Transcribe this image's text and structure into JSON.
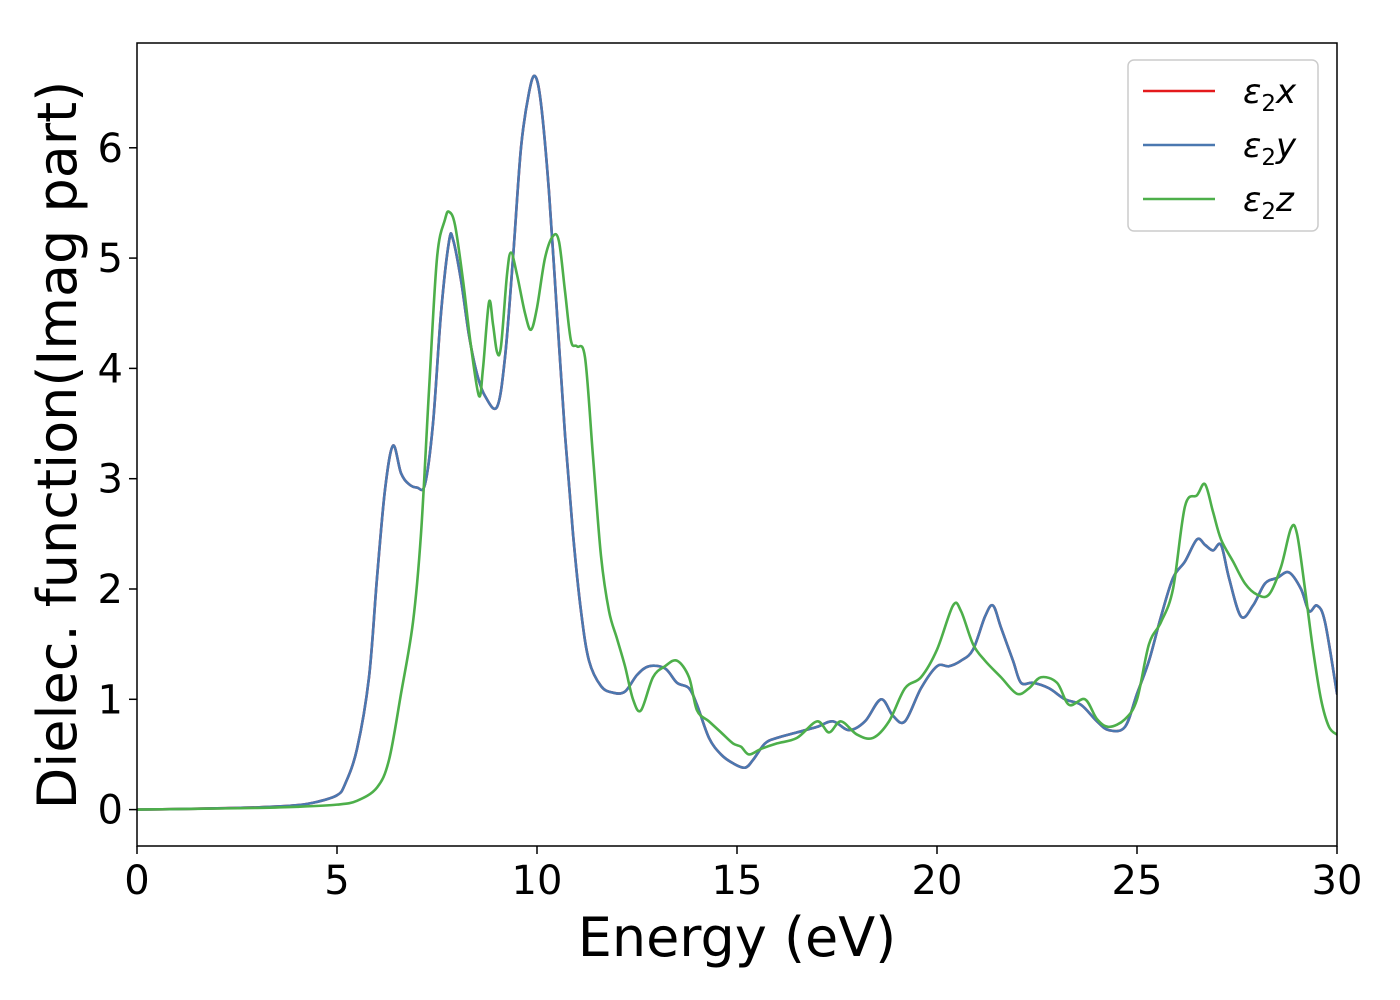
{
  "chart_data": {
    "type": "line",
    "title": "",
    "xlabel": "Energy (eV)",
    "ylabel": "Dielec. function(Imag part)",
    "xlim": [
      0,
      30
    ],
    "ylim": [
      -0.33,
      6.95
    ],
    "xticks": [
      0,
      5,
      10,
      15,
      20,
      25,
      30
    ],
    "yticks": [
      0,
      1,
      2,
      3,
      4,
      5,
      6
    ],
    "grid": false,
    "legend_position": "top-right",
    "series": [
      {
        "name": "ε₂x",
        "legend_base": "ε",
        "legend_sub": "2",
        "legend_var": "x",
        "color": "#e41a1c",
        "x": [
          0,
          1,
          2,
          3,
          4,
          4.5,
          5,
          5.2,
          5.5,
          5.8,
          6.0,
          6.2,
          6.4,
          6.6,
          6.8,
          7.0,
          7.2,
          7.4,
          7.6,
          7.8,
          7.9,
          8.1,
          8.3,
          8.5,
          8.7,
          9.0,
          9.2,
          9.4,
          9.6,
          9.8,
          9.95,
          10.1,
          10.3,
          10.5,
          10.7,
          10.9,
          11.1,
          11.3,
          11.6,
          11.9,
          12.2,
          12.5,
          12.8,
          13.2,
          13.5,
          13.8,
          14.0,
          14.3,
          14.6,
          14.9,
          15.2,
          15.4,
          15.7,
          16.0,
          16.5,
          17.0,
          17.4,
          17.8,
          18.2,
          18.6,
          18.9,
          19.2,
          19.6,
          20.0,
          20.3,
          20.6,
          20.9,
          21.2,
          21.4,
          21.6,
          21.9,
          22.1,
          22.4,
          22.8,
          23.2,
          23.6,
          24.0,
          24.3,
          24.7,
          25.0,
          25.3,
          25.6,
          25.9,
          26.2,
          26.5,
          26.7,
          26.9,
          27.1,
          27.3,
          27.6,
          27.9,
          28.2,
          28.5,
          28.8,
          29.1,
          29.3,
          29.5,
          29.7,
          30.0
        ],
        "values": [
          0.0,
          0.005,
          0.012,
          0.02,
          0.04,
          0.07,
          0.13,
          0.23,
          0.55,
          1.2,
          2.1,
          2.9,
          3.3,
          3.05,
          2.95,
          2.92,
          2.95,
          3.5,
          4.5,
          5.15,
          5.17,
          4.8,
          4.3,
          3.95,
          3.75,
          3.65,
          4.1,
          5.0,
          6.0,
          6.5,
          6.65,
          6.4,
          5.6,
          4.5,
          3.4,
          2.5,
          1.8,
          1.35,
          1.12,
          1.06,
          1.07,
          1.22,
          1.3,
          1.28,
          1.15,
          1.1,
          0.95,
          0.65,
          0.5,
          0.42,
          0.38,
          0.45,
          0.6,
          0.65,
          0.7,
          0.75,
          0.8,
          0.72,
          0.8,
          1.0,
          0.85,
          0.8,
          1.1,
          1.3,
          1.3,
          1.35,
          1.45,
          1.75,
          1.85,
          1.65,
          1.35,
          1.15,
          1.15,
          1.1,
          1.0,
          0.95,
          0.8,
          0.72,
          0.75,
          1.05,
          1.35,
          1.75,
          2.1,
          2.25,
          2.45,
          2.4,
          2.35,
          2.4,
          2.1,
          1.75,
          1.85,
          2.05,
          2.1,
          2.15,
          2.0,
          1.8,
          1.85,
          1.7,
          1.05
        ]
      },
      {
        "name": "ε₂y",
        "legend_base": "ε",
        "legend_sub": "2",
        "legend_var": "y",
        "color": "#4a78b0",
        "x": [
          0,
          1,
          2,
          3,
          4,
          4.5,
          5,
          5.2,
          5.5,
          5.8,
          6.0,
          6.2,
          6.4,
          6.6,
          6.8,
          7.0,
          7.2,
          7.4,
          7.6,
          7.8,
          7.9,
          8.1,
          8.3,
          8.5,
          8.7,
          9.0,
          9.2,
          9.4,
          9.6,
          9.8,
          9.95,
          10.1,
          10.3,
          10.5,
          10.7,
          10.9,
          11.1,
          11.3,
          11.6,
          11.9,
          12.2,
          12.5,
          12.8,
          13.2,
          13.5,
          13.8,
          14.0,
          14.3,
          14.6,
          14.9,
          15.2,
          15.4,
          15.7,
          16.0,
          16.5,
          17.0,
          17.4,
          17.8,
          18.2,
          18.6,
          18.9,
          19.2,
          19.6,
          20.0,
          20.3,
          20.6,
          20.9,
          21.2,
          21.4,
          21.6,
          21.9,
          22.1,
          22.4,
          22.8,
          23.2,
          23.6,
          24.0,
          24.3,
          24.7,
          25.0,
          25.3,
          25.6,
          25.9,
          26.2,
          26.5,
          26.7,
          26.9,
          27.1,
          27.3,
          27.6,
          27.9,
          28.2,
          28.5,
          28.8,
          29.1,
          29.3,
          29.5,
          29.7,
          30.0
        ],
        "values": [
          0.0,
          0.005,
          0.012,
          0.02,
          0.04,
          0.07,
          0.13,
          0.23,
          0.55,
          1.2,
          2.1,
          2.9,
          3.3,
          3.05,
          2.95,
          2.92,
          2.95,
          3.5,
          4.5,
          5.15,
          5.17,
          4.8,
          4.3,
          3.95,
          3.75,
          3.65,
          4.1,
          5.0,
          6.0,
          6.5,
          6.65,
          6.4,
          5.6,
          4.5,
          3.4,
          2.5,
          1.8,
          1.35,
          1.12,
          1.06,
          1.07,
          1.22,
          1.3,
          1.28,
          1.15,
          1.1,
          0.95,
          0.65,
          0.5,
          0.42,
          0.38,
          0.45,
          0.6,
          0.65,
          0.7,
          0.75,
          0.8,
          0.72,
          0.8,
          1.0,
          0.85,
          0.8,
          1.1,
          1.3,
          1.3,
          1.35,
          1.45,
          1.75,
          1.85,
          1.65,
          1.35,
          1.15,
          1.15,
          1.1,
          1.0,
          0.95,
          0.8,
          0.72,
          0.75,
          1.05,
          1.35,
          1.75,
          2.1,
          2.25,
          2.45,
          2.4,
          2.35,
          2.4,
          2.1,
          1.75,
          1.85,
          2.05,
          2.1,
          2.15,
          2.0,
          1.8,
          1.85,
          1.7,
          1.05
        ]
      },
      {
        "name": "ε₂z",
        "legend_base": "ε",
        "legend_sub": "2",
        "legend_var": "z",
        "color": "#4daf4a",
        "x": [
          0,
          1,
          2,
          3,
          4,
          5,
          5.5,
          6.0,
          6.3,
          6.6,
          6.9,
          7.1,
          7.3,
          7.5,
          7.7,
          7.8,
          7.95,
          8.15,
          8.35,
          8.55,
          8.65,
          8.8,
          8.9,
          9.0,
          9.1,
          9.25,
          9.35,
          9.5,
          9.7,
          9.85,
          10.0,
          10.2,
          10.4,
          10.55,
          10.7,
          10.85,
          11.0,
          11.2,
          11.4,
          11.6,
          11.8,
          12.0,
          12.2,
          12.4,
          12.6,
          12.9,
          13.2,
          13.5,
          13.8,
          14.0,
          14.3,
          14.6,
          14.9,
          15.1,
          15.3,
          15.6,
          16.0,
          16.5,
          17.0,
          17.3,
          17.6,
          18.0,
          18.4,
          18.8,
          19.2,
          19.6,
          20.0,
          20.4,
          20.6,
          20.9,
          21.2,
          21.6,
          22.0,
          22.3,
          22.6,
          23.0,
          23.3,
          23.7,
          24.0,
          24.3,
          24.7,
          25.0,
          25.3,
          25.6,
          25.9,
          26.2,
          26.5,
          26.7,
          26.9,
          27.1,
          27.4,
          27.7,
          28.0,
          28.3,
          28.6,
          28.85,
          29.0,
          29.2,
          29.4,
          29.6,
          29.8,
          30.0
        ],
        "values": [
          0.0,
          0.005,
          0.01,
          0.015,
          0.025,
          0.045,
          0.08,
          0.2,
          0.45,
          1.05,
          1.7,
          2.5,
          3.8,
          5.0,
          5.35,
          5.42,
          5.3,
          4.8,
          4.2,
          3.75,
          4.0,
          4.6,
          4.4,
          4.15,
          4.2,
          4.85,
          5.05,
          4.85,
          4.5,
          4.35,
          4.55,
          5.0,
          5.2,
          5.15,
          4.7,
          4.25,
          4.2,
          4.1,
          3.2,
          2.3,
          1.8,
          1.55,
          1.3,
          1.0,
          0.9,
          1.2,
          1.3,
          1.35,
          1.2,
          0.9,
          0.8,
          0.7,
          0.6,
          0.57,
          0.5,
          0.55,
          0.6,
          0.65,
          0.8,
          0.7,
          0.8,
          0.68,
          0.65,
          0.8,
          1.1,
          1.2,
          1.45,
          1.85,
          1.8,
          1.5,
          1.35,
          1.2,
          1.05,
          1.1,
          1.2,
          1.15,
          0.95,
          1.0,
          0.82,
          0.75,
          0.82,
          1.0,
          1.5,
          1.7,
          2.0,
          2.75,
          2.85,
          2.95,
          2.7,
          2.45,
          2.25,
          2.05,
          1.95,
          1.95,
          2.2,
          2.55,
          2.5,
          2.0,
          1.45,
          1.0,
          0.75,
          0.68
        ]
      }
    ]
  }
}
